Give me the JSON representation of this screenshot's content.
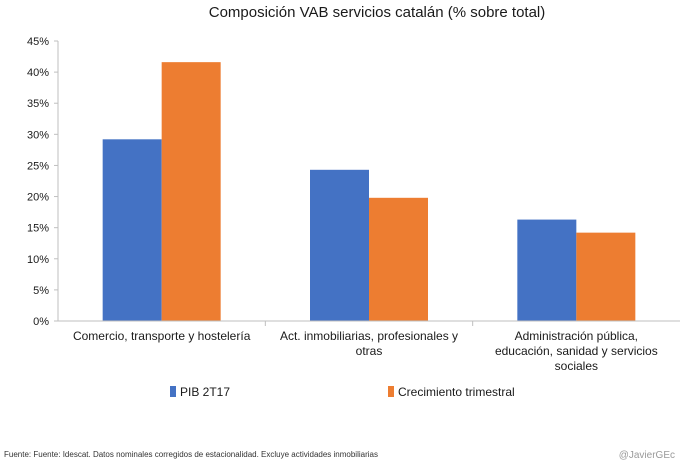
{
  "chart_data": {
    "type": "bar",
    "title": "Composición VAB servicios catalán (% sobre total)",
    "categories": [
      [
        "Comercio, transporte y hostelería"
      ],
      [
        "Act. inmobiliarias, profesionales y",
        "otras"
      ],
      [
        "Administración pública,",
        "educación, sanidad y servicios",
        "sociales"
      ]
    ],
    "series": [
      {
        "name": "PIB 2T17",
        "color": "#4472C4",
        "values": [
          29.2,
          24.3,
          16.3
        ]
      },
      {
        "name": "Crecimiento trimestral",
        "color": "#ED7D31",
        "values": [
          41.6,
          19.8,
          14.2
        ]
      }
    ],
    "ylim": [
      0,
      45
    ],
    "yticks": [
      0,
      5,
      10,
      15,
      20,
      25,
      30,
      35,
      40,
      45
    ],
    "ytick_labels": [
      "0%",
      "5%",
      "10%",
      "15%",
      "20%",
      "25%",
      "30%",
      "35%",
      "40%",
      "45%"
    ],
    "grid": false,
    "legend_position": "bottom-left",
    "xlabel": "",
    "ylabel": ""
  },
  "footer": {
    "source": "Fuente: Fuente: Idescat. Datos nominales corregidos de estacionalidad. Excluye actividades inmobiliarias",
    "handle": "@JavierGEc"
  }
}
